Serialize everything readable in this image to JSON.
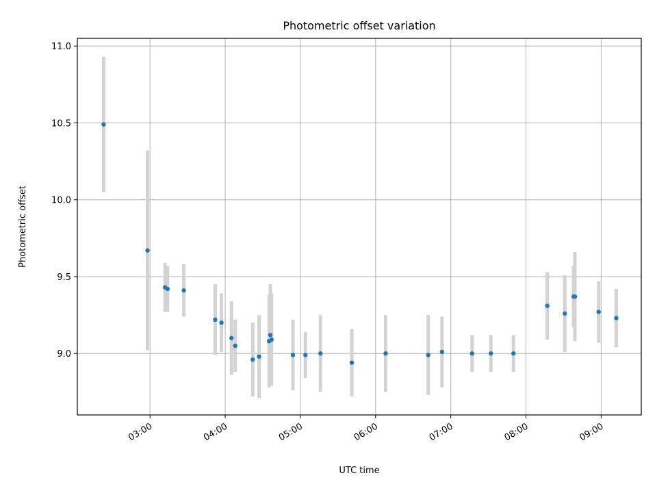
{
  "chart_data": {
    "type": "scatter",
    "title": "Photometric offset variation",
    "xlabel": "UTC time",
    "ylabel": "Photometric offset",
    "x_axis_kind": "time",
    "xlim": [
      "02:02",
      "09:32"
    ],
    "ylim": [
      8.6,
      11.05
    ],
    "grid": true,
    "x_ticks": [
      "03:00",
      "04:00",
      "05:00",
      "06:00",
      "07:00",
      "08:00",
      "09:00"
    ],
    "y_ticks": [
      "9.0",
      "9.5",
      "10.0",
      "10.5",
      "11.0"
    ],
    "colors": {
      "point": "#1f77b4",
      "errorbar": "#d3d3d3",
      "grid": "#b0b0b0"
    },
    "points": [
      {
        "x": "02:23",
        "y": 10.49,
        "err": 0.44
      },
      {
        "x": "02:58",
        "y": 9.67,
        "err": 0.65
      },
      {
        "x": "03:12",
        "y": 9.43,
        "err": 0.16
      },
      {
        "x": "03:14",
        "y": 9.42,
        "err": 0.15
      },
      {
        "x": "03:27",
        "y": 9.41,
        "err": 0.17
      },
      {
        "x": "03:52",
        "y": 9.22,
        "err": 0.23
      },
      {
        "x": "03:57",
        "y": 9.2,
        "err": 0.19
      },
      {
        "x": "04:05",
        "y": 9.1,
        "err": 0.24
      },
      {
        "x": "04:08",
        "y": 9.05,
        "err": 0.17
      },
      {
        "x": "04:22",
        "y": 8.96,
        "err": 0.24
      },
      {
        "x": "04:27",
        "y": 8.98,
        "err": 0.27
      },
      {
        "x": "04:35",
        "y": 9.08,
        "err": 0.3
      },
      {
        "x": "04:36",
        "y": 9.12,
        "err": 0.33
      },
      {
        "x": "04:37",
        "y": 9.09,
        "err": 0.3
      },
      {
        "x": "04:54",
        "y": 8.99,
        "err": 0.23
      },
      {
        "x": "05:04",
        "y": 8.99,
        "err": 0.15
      },
      {
        "x": "05:16",
        "y": 9.0,
        "err": 0.25
      },
      {
        "x": "05:41",
        "y": 8.94,
        "err": 0.22
      },
      {
        "x": "06:08",
        "y": 9.0,
        "err": 0.25
      },
      {
        "x": "06:42",
        "y": 8.99,
        "err": 0.26
      },
      {
        "x": "06:53",
        "y": 9.01,
        "err": 0.23
      },
      {
        "x": "07:17",
        "y": 9.0,
        "err": 0.12
      },
      {
        "x": "07:32",
        "y": 9.0,
        "err": 0.12
      },
      {
        "x": "07:50",
        "y": 9.0,
        "err": 0.12
      },
      {
        "x": "08:17",
        "y": 9.31,
        "err": 0.22
      },
      {
        "x": "08:31",
        "y": 9.26,
        "err": 0.25
      },
      {
        "x": "08:38",
        "y": 9.37,
        "err": 0.2
      },
      {
        "x": "08:39",
        "y": 9.37,
        "err": 0.29
      },
      {
        "x": "08:58",
        "y": 9.27,
        "err": 0.2
      },
      {
        "x": "09:12",
        "y": 9.23,
        "err": 0.19
      }
    ]
  }
}
